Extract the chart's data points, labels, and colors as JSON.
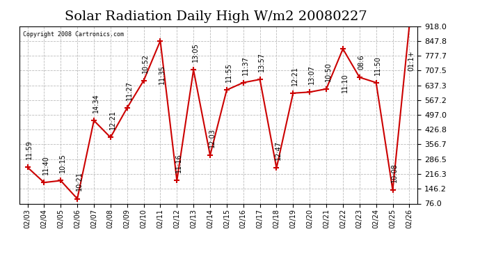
{
  "title": "Solar Radiation Daily High W/m2 20080227",
  "copyright": "Copyright 2008 Cartronics.com",
  "dates": [
    "02/03",
    "02/04",
    "02/05",
    "02/06",
    "02/07",
    "02/08",
    "02/09",
    "02/10",
    "02/11",
    "02/12",
    "02/13",
    "02/14",
    "02/15",
    "02/16",
    "02/17",
    "02/18",
    "02/19",
    "02/20",
    "02/21",
    "02/22",
    "02/23",
    "02/24",
    "02/25",
    "02/26"
  ],
  "values": [
    248,
    176,
    185,
    99,
    470,
    390,
    530,
    660,
    848,
    185,
    710,
    305,
    615,
    650,
    665,
    245,
    600,
    605,
    620,
    810,
    675,
    650,
    140,
    918
  ],
  "times": [
    "11:59",
    "11:40",
    "10:15",
    "10:21",
    "14:34",
    "12:21",
    "11:27",
    "10:52",
    "11:35",
    "11:16",
    "13:05",
    "12:03",
    "11:55",
    "11:37",
    "13:57",
    "12:47",
    "12:21",
    "13:07",
    "10:50",
    "11:10",
    "08:6",
    "11:50",
    "10:08",
    "01:1+"
  ],
  "ylim_min": 76.0,
  "ylim_max": 918.0,
  "yticks": [
    76.0,
    146.2,
    216.3,
    286.5,
    356.7,
    426.8,
    497.0,
    567.2,
    637.3,
    707.5,
    777.7,
    847.8,
    918.0
  ],
  "line_color": "#cc0000",
  "bg_color": "#ffffff",
  "grid_color": "#bbbbbb",
  "title_fontsize": 14,
  "annotation_fontsize": 7,
  "tick_fontsize": 8,
  "xlabel_fontsize": 7
}
